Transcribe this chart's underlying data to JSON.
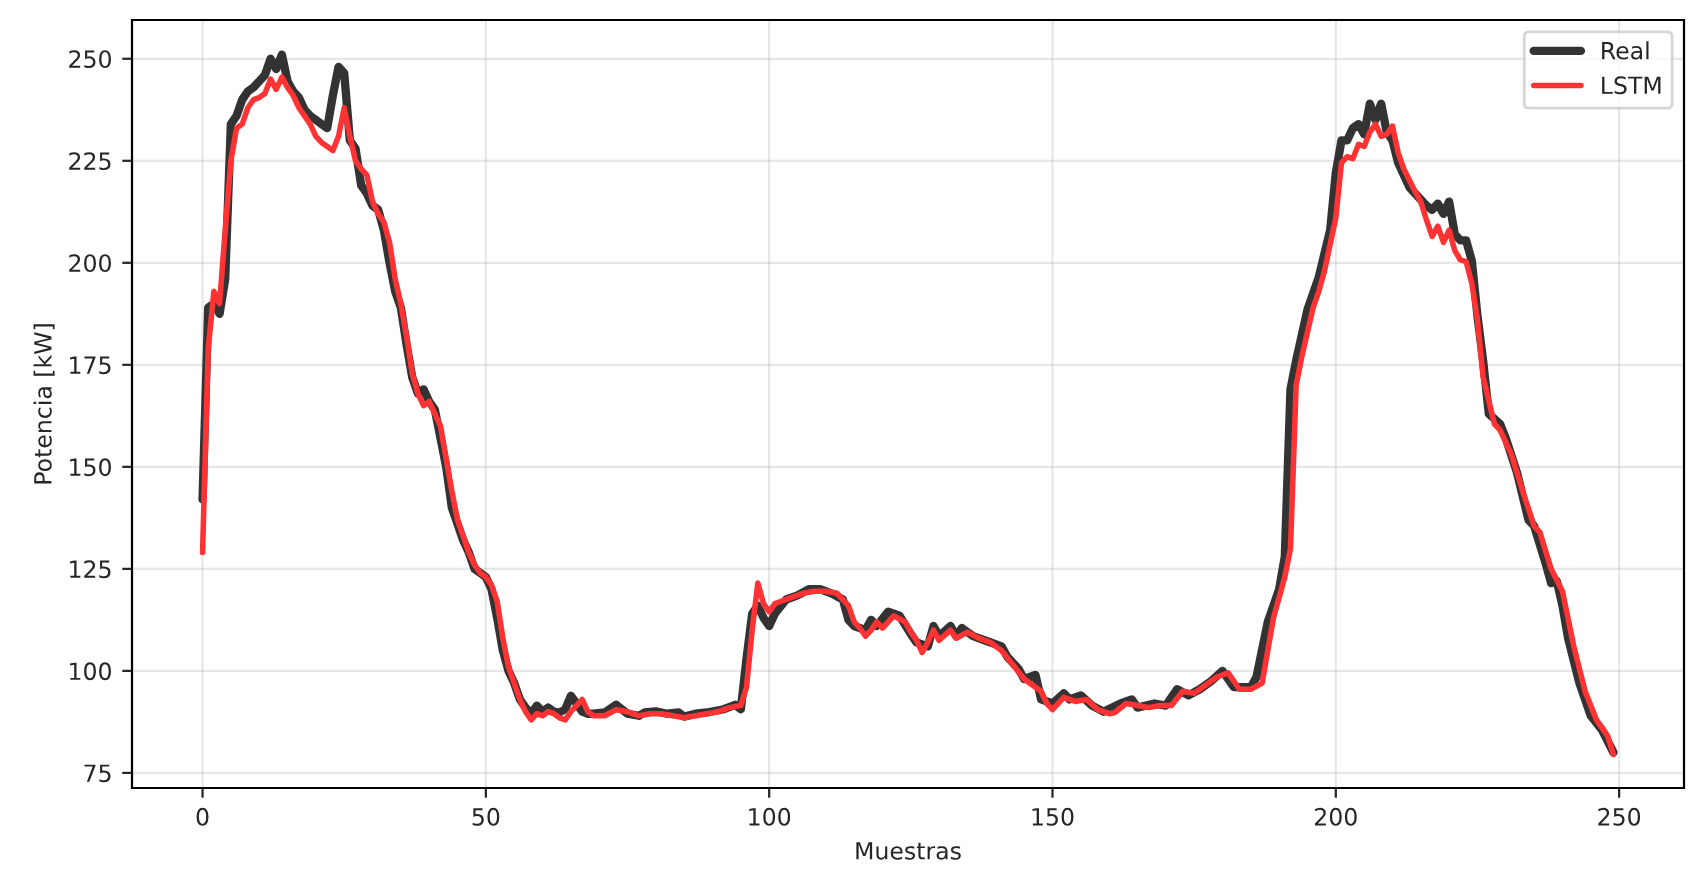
{
  "chart_data": {
    "type": "line",
    "xlabel": "Muestras",
    "ylabel": "Potencia [kW]",
    "xlim": [
      -12.45,
      261.45
    ],
    "xticks": [
      0,
      50,
      100,
      150,
      200,
      250
    ],
    "ylim": [
      71.3,
      259.5
    ],
    "yticks": [
      75,
      100,
      125,
      150,
      175,
      200,
      225,
      250
    ],
    "grid": true,
    "legend": "top right",
    "line_style": "solid",
    "series": [
      {
        "name": "Real",
        "color": "#333333",
        "x": [
          0,
          1,
          2,
          3,
          4,
          5,
          6,
          7,
          8,
          9,
          10,
          11,
          12,
          13,
          14,
          15,
          16,
          17,
          18,
          19,
          20,
          21,
          22,
          23,
          24,
          25,
          26,
          27,
          28,
          29,
          30,
          31,
          32,
          33,
          34,
          35,
          36,
          37,
          38,
          39,
          40,
          41,
          42,
          43,
          44,
          45,
          46,
          47,
          48,
          49,
          50,
          51,
          52,
          53,
          54,
          55,
          56,
          57,
          58,
          59,
          60,
          61,
          62,
          63,
          64,
          65,
          66,
          67,
          68,
          69,
          71,
          73,
          75,
          77,
          78,
          80,
          82,
          84,
          85,
          87,
          89,
          92,
          94,
          95,
          96,
          97,
          98,
          99,
          100,
          101,
          103,
          105,
          107,
          109,
          111,
          113,
          114,
          115,
          117,
          118,
          119,
          121,
          123,
          125,
          126,
          128,
          129,
          130,
          132,
          133,
          134,
          136,
          138,
          141,
          142,
          144,
          145,
          147,
          148,
          150,
          152,
          153,
          155,
          157,
          159,
          162,
          164,
          165,
          168,
          170,
          172,
          174,
          176,
          178,
          180,
          182,
          185,
          186,
          188,
          190,
          191,
          192,
          193,
          195,
          196,
          197,
          199,
          200,
          201,
          202,
          203,
          204,
          205,
          206,
          207,
          208,
          209,
          210,
          211,
          213,
          215,
          216,
          217,
          218,
          219,
          220,
          221,
          222,
          223,
          224,
          225,
          226,
          227,
          229,
          230,
          232,
          234,
          235,
          237,
          238,
          239,
          240,
          241,
          243,
          245,
          247,
          249
        ],
        "values": [
          142,
          189,
          190,
          187.5,
          196,
          234,
          236,
          240,
          242,
          243,
          244.5,
          246,
          250,
          247.5,
          251,
          244.5,
          242,
          240.5,
          237.5,
          236,
          235,
          234,
          233,
          241,
          248,
          246.5,
          230,
          228,
          219,
          217,
          214,
          213,
          208,
          200,
          193,
          189,
          180,
          172,
          168,
          169,
          166,
          164,
          157,
          150,
          140,
          136,
          132,
          129,
          125,
          124,
          123,
          120,
          113,
          105,
          100,
          97,
          93,
          91,
          89.5,
          91.5,
          90,
          91,
          90,
          89.8,
          90.6,
          93.9,
          92,
          90,
          89.5,
          89.5,
          89.8,
          91.7,
          89.5,
          89,
          89.8,
          90.1,
          89.5,
          89.8,
          88.8,
          89.5,
          89.8,
          90.6,
          91.7,
          90.6,
          103,
          114,
          116,
          113,
          111,
          114,
          117.5,
          118.5,
          120,
          120,
          119,
          117.5,
          112.5,
          111,
          110,
          112.5,
          111,
          114.5,
          113.5,
          109,
          107,
          106,
          111,
          108.5,
          111,
          108.5,
          110.5,
          108.5,
          107.5,
          106,
          103.5,
          100.5,
          98,
          99,
          93,
          92,
          94.5,
          93,
          94,
          91.5,
          90,
          92,
          93,
          91,
          92,
          91.5,
          95.5,
          94,
          95.5,
          97.5,
          100,
          96,
          96,
          98.5,
          112,
          120,
          128,
          169,
          176,
          188.5,
          192.5,
          196.5,
          208,
          222,
          230,
          230,
          233,
          234,
          231.5,
          239,
          235,
          239,
          232,
          230,
          224.5,
          218.5,
          215.5,
          214,
          213,
          214.5,
          212,
          215,
          207,
          205.5,
          205.5,
          200.5,
          187,
          176,
          163,
          160.5,
          157,
          148.5,
          137,
          135.5,
          126.5,
          121.5,
          122,
          116,
          108,
          97,
          89,
          85.5,
          80
        ]
      },
      {
        "name": "LSTM",
        "color": "#ff3333",
        "x": [
          0,
          1,
          2,
          3,
          4,
          5,
          6,
          7,
          8,
          9,
          10,
          11,
          12,
          13,
          14,
          15,
          16,
          17,
          18,
          19,
          20,
          21,
          22,
          23,
          24,
          25,
          26,
          27,
          28,
          29,
          30,
          31,
          32,
          33,
          34,
          35,
          36,
          37,
          38,
          39,
          40,
          41,
          42,
          43,
          44,
          45,
          46,
          47,
          48,
          49,
          50,
          51,
          52,
          53,
          54,
          55,
          56,
          57,
          58,
          59,
          60,
          61,
          62,
          63,
          64,
          65,
          66,
          67,
          68,
          69,
          71,
          73,
          75,
          77,
          79,
          81,
          83,
          85,
          87,
          89,
          91,
          93,
          95,
          96,
          97,
          98,
          99,
          100,
          101,
          102,
          104,
          106,
          108,
          110,
          112,
          114,
          115,
          116,
          117,
          118,
          119,
          120,
          122,
          124,
          125,
          126,
          127,
          128,
          129,
          130,
          132,
          133,
          135,
          137,
          139,
          141,
          143,
          145,
          146,
          148,
          149,
          150,
          152,
          154,
          156,
          158,
          160,
          161,
          163,
          165,
          167,
          169,
          171,
          173,
          175,
          177,
          179,
          181,
          183,
          185,
          187,
          189,
          191,
          192,
          193,
          194,
          196,
          197,
          198,
          200,
          201,
          202,
          203,
          204,
          205,
          206,
          207,
          208,
          209,
          210,
          211,
          212,
          214,
          215,
          216,
          217,
          218,
          219,
          220,
          221,
          222,
          223,
          224,
          225,
          226,
          228,
          229,
          231,
          233,
          235,
          236,
          238,
          240,
          242,
          244,
          246,
          248,
          249
        ],
        "values": [
          129,
          179,
          193,
          190,
          208,
          225,
          233,
          234,
          238,
          240,
          240.5,
          241.5,
          245,
          242.5,
          245.5,
          243,
          241,
          238,
          236,
          234,
          231,
          229.5,
          228.5,
          227.5,
          231,
          238,
          231,
          225,
          223,
          221.5,
          215,
          212,
          210,
          205,
          196,
          190,
          182,
          173,
          168,
          165,
          166,
          163,
          160,
          152,
          144,
          137,
          133,
          129,
          126,
          124,
          123,
          121,
          117,
          108,
          101,
          97,
          93,
          90,
          88,
          89.5,
          89,
          90,
          89.5,
          88.5,
          88,
          90,
          91.5,
          93,
          90,
          89,
          89,
          90.5,
          90,
          89,
          89.5,
          89.5,
          89,
          88.5,
          89,
          89.5,
          90,
          91,
          91.5,
          96,
          110,
          121.5,
          116.5,
          114.5,
          116.5,
          117,
          118,
          119,
          119.5,
          119.5,
          119,
          116,
          112,
          110.5,
          108.5,
          110,
          112,
          110.5,
          113.5,
          112,
          109.5,
          107.5,
          104.5,
          107,
          110,
          107.5,
          110,
          108,
          109.5,
          108,
          107,
          105,
          101.5,
          98,
          97,
          95,
          92,
          90.5,
          93.5,
          92.5,
          93,
          90.5,
          89.5,
          89.8,
          92,
          91.5,
          91,
          91.5,
          91.5,
          95,
          94.5,
          96.5,
          98.5,
          99.5,
          95.5,
          95.5,
          97,
          113,
          123,
          130,
          170,
          177,
          189,
          193,
          198,
          211,
          224.5,
          226,
          225.5,
          229,
          228.5,
          232,
          234,
          231,
          231.5,
          233.5,
          227,
          223,
          217.5,
          215,
          210.5,
          206.5,
          209,
          205,
          208,
          203,
          200.7,
          200.3,
          195,
          186,
          172,
          160.5,
          159,
          153,
          144,
          135.5,
          134,
          125,
          119.5,
          106,
          95,
          88,
          84,
          79.5
        ]
      }
    ]
  }
}
